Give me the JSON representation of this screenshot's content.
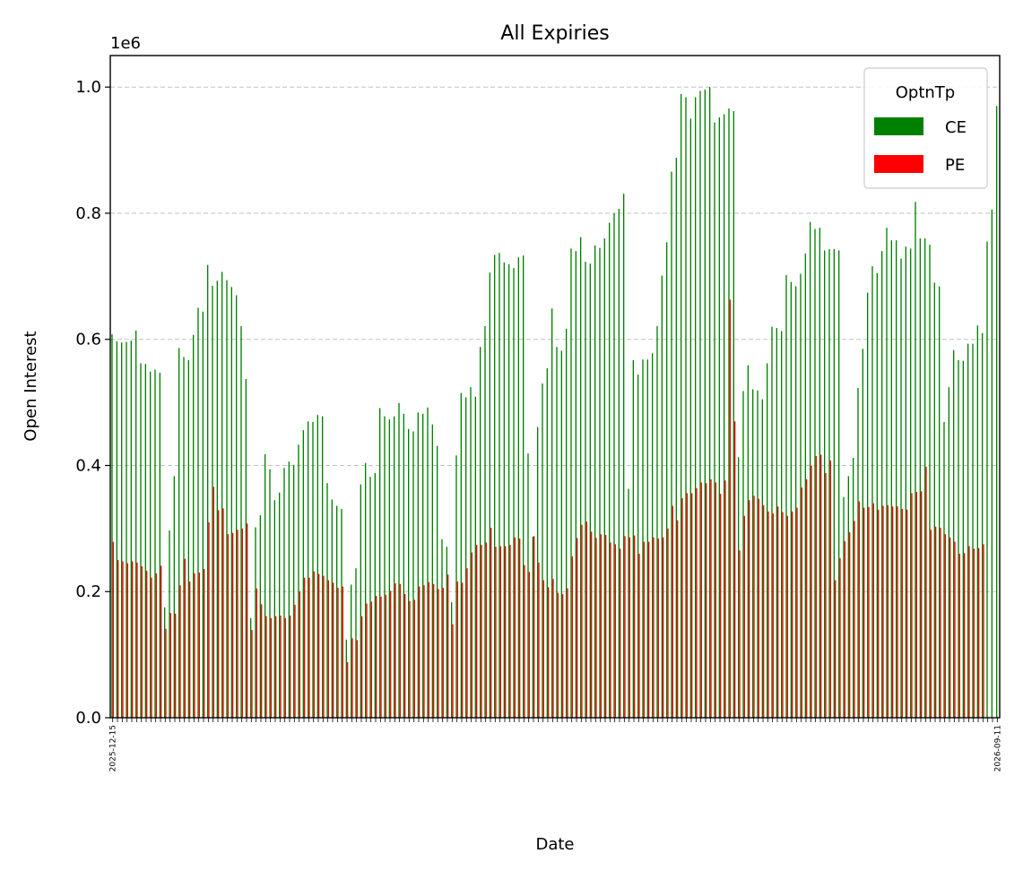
{
  "chart_data": {
    "type": "bar",
    "title": "All Expiries",
    "xlabel": "Date",
    "ylabel": "Open Interest",
    "y_scale_label": "1e6",
    "ylim": [
      0,
      1050000
    ],
    "y_ticks": [
      0,
      200000,
      400000,
      600000,
      800000,
      1000000
    ],
    "y_tick_labels": [
      "0.0",
      "0.2",
      "0.4",
      "0.6",
      "0.8",
      "1.0"
    ],
    "grid": "y-dashed",
    "legend": {
      "title": "OptnTp",
      "placement": "top-right"
    },
    "first_date_label": "2025-12-15",
    "last_date_label": "2026-09-11",
    "series": [
      {
        "name": "CE",
        "color": "#008000",
        "values": [
          608000,
          597000,
          595000,
          596000,
          598000,
          614000,
          562000,
          561000,
          549000,
          552000,
          547000,
          175000,
          297000,
          383000,
          586000,
          572000,
          567000,
          607000,
          650000,
          644000,
          718000,
          685000,
          693000,
          707000,
          694000,
          683000,
          670000,
          621000,
          537000,
          158000,
          302000,
          321000,
          418000,
          394000,
          345000,
          357000,
          396000,
          406000,
          401000,
          433000,
          456000,
          470000,
          469000,
          480000,
          478000,
          372000,
          346000,
          336000,
          331000,
          124000,
          211000,
          237000,
          370000,
          404000,
          382000,
          388000,
          491000,
          478000,
          473000,
          478000,
          499000,
          482000,
          458000,
          454000,
          484000,
          482000,
          492000,
          465000,
          431000,
          283000,
          271000,
          183000,
          416000,
          515000,
          508000,
          524000,
          509000,
          588000,
          621000,
          706000,
          734000,
          737000,
          722000,
          719000,
          713000,
          730000,
          733000,
          419000,
          287000,
          461000,
          530000,
          554000,
          649000,
          588000,
          582000,
          617000,
          744000,
          740000,
          762000,
          723000,
          720000,
          749000,
          745000,
          760000,
          785000,
          800000,
          807000,
          831000,
          363000,
          567000,
          544000,
          568000,
          568000,
          578000,
          621000,
          701000,
          754000,
          866000,
          888000,
          989000,
          984000,
          950000,
          984000,
          994000,
          996000,
          1000000,
          944000,
          952000,
          957000,
          966000,
          962000,
          413000,
          518000,
          559000,
          521000,
          519000,
          505000,
          562000,
          620000,
          618000,
          613000,
          702000,
          691000,
          684000,
          704000,
          736000,
          786000,
          775000,
          777000,
          741000,
          743000,
          743000,
          741000,
          350000,
          383000,
          412000,
          523000,
          585000,
          674000,
          716000,
          705000,
          740000,
          777000,
          757000,
          757000,
          728000,
          747000,
          744000,
          818000,
          760000,
          760000,
          750000,
          690000,
          684000,
          469000,
          524000,
          583000,
          567000,
          566000,
          593000,
          593000,
          622000,
          610000,
          755000,
          806000,
          970000
        ]
      },
      {
        "name": "PE",
        "color": "#ff0000",
        "values": [
          279000,
          250000,
          248000,
          245000,
          248000,
          246000,
          240000,
          233000,
          222000,
          229000,
          241000,
          141000,
          166000,
          165000,
          210000,
          252000,
          216000,
          229000,
          230000,
          236000,
          310000,
          366000,
          329000,
          332000,
          291000,
          293000,
          298000,
          300000,
          308000,
          139000,
          205000,
          180000,
          161000,
          158000,
          161000,
          162000,
          158000,
          162000,
          179000,
          200000,
          222000,
          222000,
          232000,
          228000,
          225000,
          218000,
          214000,
          206000,
          208000,
          88000,
          126000,
          123000,
          161000,
          181000,
          184000,
          193000,
          192000,
          195000,
          201000,
          213000,
          212000,
          196000,
          185000,
          187000,
          208000,
          210000,
          215000,
          212000,
          204000,
          206000,
          227000,
          148000,
          216000,
          214000,
          237000,
          262000,
          274000,
          274000,
          278000,
          301000,
          271000,
          272000,
          272000,
          274000,
          286000,
          284000,
          242000,
          231000,
          288000,
          246000,
          218000,
          207000,
          220000,
          198000,
          196000,
          205000,
          256000,
          285000,
          306000,
          311000,
          295000,
          285000,
          291000,
          290000,
          278000,
          275000,
          268000,
          288000,
          286000,
          289000,
          260000,
          279000,
          279000,
          286000,
          284000,
          286000,
          300000,
          336000,
          313000,
          348000,
          356000,
          356000,
          364000,
          373000,
          372000,
          378000,
          373000,
          355000,
          376000,
          663000,
          470000,
          265000,
          320000,
          345000,
          352000,
          347000,
          337000,
          327000,
          324000,
          335000,
          326000,
          320000,
          327000,
          333000,
          365000,
          378000,
          400000,
          415000,
          417000,
          388000,
          408000,
          218000,
          253000,
          280000,
          294000,
          312000,
          343000,
          333000,
          334000,
          340000,
          330000,
          336000,
          337000,
          335000,
          335000,
          331000,
          330000,
          356000,
          358000,
          359000,
          398000,
          298000,
          303000,
          301000,
          291000,
          286000,
          279000,
          260000,
          261000,
          272000,
          268000,
          269000,
          275000
        ]
      }
    ]
  }
}
